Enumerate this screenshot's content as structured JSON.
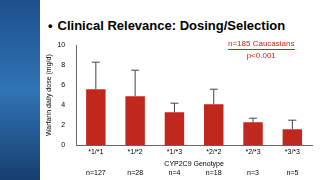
{
  "chart_data": {
    "type": "bar",
    "title": "Clinical Relevance: Dosing/Selection",
    "x_label": "CYP2C9 Genotype",
    "y_label": "Warfarin daily dose (mg/d)",
    "categories": [
      "*1/*1",
      "*1/*2",
      "*1/*3",
      "*2/*2",
      "*2/*3",
      "*3/*3"
    ],
    "values": [
      5.6,
      4.9,
      3.3,
      4.1,
      2.3,
      1.6
    ],
    "errors": [
      2.7,
      2.6,
      0.9,
      1.5,
      0.4,
      0.9
    ],
    "group_labels": [
      "n=127",
      "n=28",
      "n=4",
      "n=18",
      "n=3",
      "n=5"
    ],
    "annotations": [
      "n=185 Caucasians",
      "p<0.001"
    ],
    "color": "#c0281e",
    "ylim": [
      0,
      10
    ],
    "yticks": [
      0,
      2,
      4,
      6,
      8,
      10
    ],
    "grid": false
  }
}
